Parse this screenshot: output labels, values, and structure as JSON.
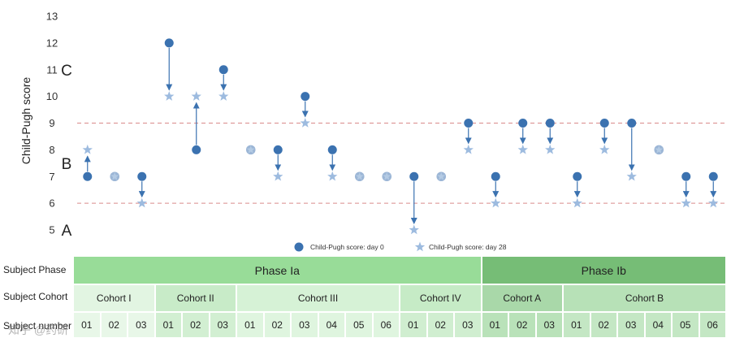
{
  "chart_data": {
    "type": "scatter",
    "ylabel": "Child-Pugh score",
    "ylim": [
      5,
      13
    ],
    "yticks": [
      5,
      6,
      7,
      8,
      9,
      10,
      11,
      12,
      13
    ],
    "grades": [
      {
        "label": "A",
        "y": 5
      },
      {
        "label": "B",
        "y": 7.5
      },
      {
        "label": "C",
        "y": 11
      }
    ],
    "reference_lines": [
      6,
      9
    ],
    "legend": {
      "day0": "Child-Pugh score: day 0",
      "day28": "Child-Pugh score: day 28"
    },
    "subjects": [
      {
        "phase": "Phase Ia",
        "cohort": "Cohort I",
        "number": "01",
        "day0": 7,
        "day28": 8
      },
      {
        "phase": "Phase Ia",
        "cohort": "Cohort I",
        "number": "02",
        "day0": 7,
        "day28": 7
      },
      {
        "phase": "Phase Ia",
        "cohort": "Cohort I",
        "number": "03",
        "day0": 7,
        "day28": 6
      },
      {
        "phase": "Phase Ia",
        "cohort": "Cohort II",
        "number": "01",
        "day0": 12,
        "day28": 10
      },
      {
        "phase": "Phase Ia",
        "cohort": "Cohort II",
        "number": "02",
        "day0": 8,
        "day28": 10
      },
      {
        "phase": "Phase Ia",
        "cohort": "Cohort II",
        "number": "03",
        "day0": 11,
        "day28": 10
      },
      {
        "phase": "Phase Ia",
        "cohort": "Cohort III",
        "number": "01",
        "day0": 8,
        "day28": 8
      },
      {
        "phase": "Phase Ia",
        "cohort": "Cohort III",
        "number": "02",
        "day0": 8,
        "day28": 7
      },
      {
        "phase": "Phase Ia",
        "cohort": "Cohort III",
        "number": "03",
        "day0": 10,
        "day28": 9
      },
      {
        "phase": "Phase Ia",
        "cohort": "Cohort III",
        "number": "04",
        "day0": 8,
        "day28": 7
      },
      {
        "phase": "Phase Ia",
        "cohort": "Cohort III",
        "number": "05",
        "day0": 7,
        "day28": 7
      },
      {
        "phase": "Phase Ia",
        "cohort": "Cohort III",
        "number": "06",
        "day0": 7,
        "day28": 7
      },
      {
        "phase": "Phase Ia",
        "cohort": "Cohort IV",
        "number": "01",
        "day0": 7,
        "day28": 5
      },
      {
        "phase": "Phase Ia",
        "cohort": "Cohort IV",
        "number": "02",
        "day0": 7,
        "day28": 7
      },
      {
        "phase": "Phase Ia",
        "cohort": "Cohort IV",
        "number": "03",
        "day0": 9,
        "day28": 8
      },
      {
        "phase": "Phase Ib",
        "cohort": "Cohort A",
        "number": "01",
        "day0": 7,
        "day28": 6
      },
      {
        "phase": "Phase Ib",
        "cohort": "Cohort A",
        "number": "02",
        "day0": 9,
        "day28": 8
      },
      {
        "phase": "Phase Ib",
        "cohort": "Cohort A",
        "number": "03",
        "day0": 9,
        "day28": 8
      },
      {
        "phase": "Phase Ib",
        "cohort": "Cohort B",
        "number": "01",
        "day0": 7,
        "day28": 6
      },
      {
        "phase": "Phase Ib",
        "cohort": "Cohort B",
        "number": "02",
        "day0": 9,
        "day28": 8
      },
      {
        "phase": "Phase Ib",
        "cohort": "Cohort B",
        "number": "03",
        "day0": 9,
        "day28": 7
      },
      {
        "phase": "Phase Ib",
        "cohort": "Cohort B",
        "number": "04",
        "day0": 8,
        "day28": 8
      },
      {
        "phase": "Phase Ib",
        "cohort": "Cohort B",
        "number": "05",
        "day0": 7,
        "day28": 6
      },
      {
        "phase": "Phase Ib",
        "cohort": "Cohort B",
        "number": "06",
        "day0": 7,
        "day28": 6
      }
    ],
    "colors": {
      "day0": "#3b72b0",
      "day28": "#9dbbdf",
      "overlap": "#9cb6d6",
      "arrow": "#3b72b0",
      "refline": "#d98a8a"
    }
  },
  "table": {
    "row_labels": {
      "phase": "Subject Phase",
      "cohort": "Subject Cohort",
      "number": "Subject number"
    },
    "phases": [
      {
        "label": "Phase  Ia",
        "count": 15
      },
      {
        "label": "Phase  Ib",
        "count": 9
      }
    ],
    "cohorts": [
      {
        "label": "Cohort I",
        "count": 3
      },
      {
        "label": "Cohort II",
        "count": 3
      },
      {
        "label": "Cohort III",
        "count": 6
      },
      {
        "label": "Cohort IV",
        "count": 3
      },
      {
        "label": "Cohort A",
        "count": 3
      },
      {
        "label": "Cohort B",
        "count": 6
      }
    ],
    "colors": {
      "phase": [
        "#98dc98",
        "#76bd76"
      ],
      "cohort": [
        "#e2f5e2",
        "#c8ebc8",
        "#d6f2d6",
        "#c6ebc6",
        "#a9d8a9",
        "#b7e1b7"
      ],
      "number": [
        "#e8f7e8",
        "#d2efd2",
        "#dff5df",
        "#d0eed0",
        "#b9e2b9",
        "#c4e7c4"
      ]
    }
  },
  "watermark": "知乎 @药研"
}
